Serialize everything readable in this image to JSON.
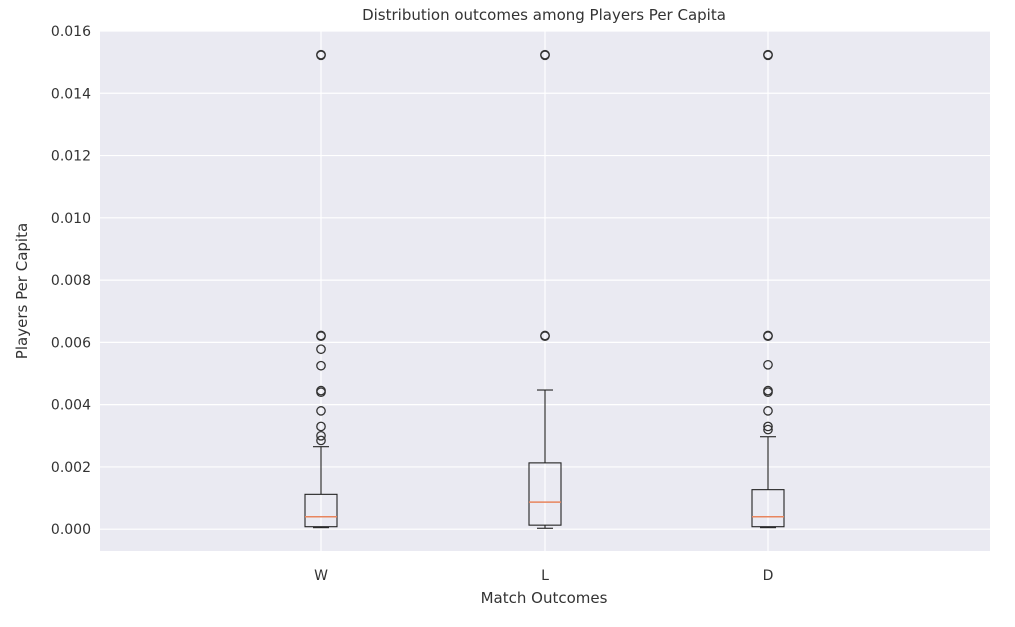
{
  "chart_data": {
    "type": "boxplot",
    "title": "Distribution outcomes among Players Per Capita",
    "xlabel": "Match Outcomes",
    "ylabel": "Players Per Capita",
    "ylim": [
      -0.0007,
      0.016
    ],
    "yticks": [
      0.0,
      0.002,
      0.004,
      0.006,
      0.008,
      0.01,
      0.012,
      0.014,
      0.016
    ],
    "ytick_labels": [
      "0.000",
      "0.002",
      "0.004",
      "0.006",
      "0.008",
      "0.010",
      "0.012",
      "0.014",
      "0.016"
    ],
    "grid": true,
    "categories": [
      "W",
      "L",
      "D"
    ],
    "boxes": [
      {
        "category": "W",
        "whislo": 5e-05,
        "q1": 8e-05,
        "median": 0.0004,
        "q3": 0.00112,
        "whishi": 0.00265,
        "fliers": [
          0.00285,
          0.003,
          0.0033,
          0.0038,
          0.0044,
          0.00445,
          0.00525,
          0.00578,
          0.0062,
          0.00622,
          0.01522,
          0.01524
        ]
      },
      {
        "category": "L",
        "whislo": 3e-05,
        "q1": 0.00013,
        "median": 0.00087,
        "q3": 0.00213,
        "whishi": 0.00447,
        "fliers": [
          0.0062,
          0.00622,
          0.01522,
          0.01524
        ]
      },
      {
        "category": "D",
        "whislo": 5e-05,
        "q1": 8e-05,
        "median": 0.0004,
        "q3": 0.00127,
        "whishi": 0.00297,
        "fliers": [
          0.0032,
          0.0033,
          0.0038,
          0.0044,
          0.00445,
          0.00528,
          0.0062,
          0.00622,
          0.01522,
          0.01524
        ]
      }
    ],
    "colors": {
      "plot_background": "#eaeaf2",
      "grid": "#ffffff",
      "box": "#222222",
      "median": "#e8855e",
      "flier": "#333333"
    }
  }
}
